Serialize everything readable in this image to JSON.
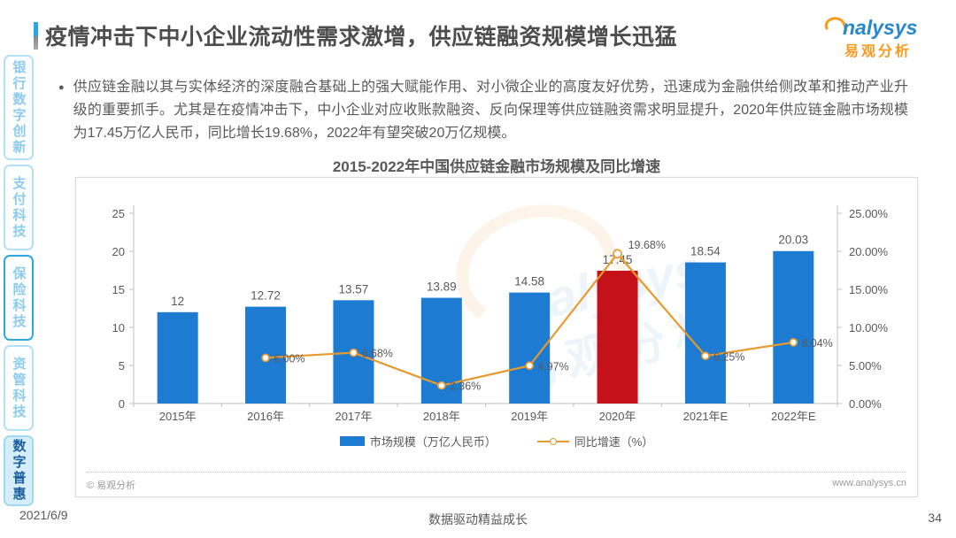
{
  "page": {
    "title": "疫情冲击下中小企业流动性需求激增，供应链融资规模增长迅猛",
    "date": "2021/6/9",
    "slogan": "数据驱动精益成长",
    "page_number": "34"
  },
  "logo": {
    "icon": "swirl-logo-icon",
    "brand": "nalysys",
    "brand_cn": "易观分析"
  },
  "sidebar": {
    "tabs": [
      {
        "label": "银行数字创新",
        "state": "normal"
      },
      {
        "label": "支付科技",
        "state": "normal"
      },
      {
        "label": "保险科技",
        "state": "outlined"
      },
      {
        "label": "资管科技",
        "state": "normal"
      },
      {
        "label": "数字普惠",
        "state": "active"
      }
    ]
  },
  "content": {
    "bullet_text": "供应链金融以其与实体经济的深度融合基础上的强大赋能作用、对小微企业的高度友好优势，迅速成为金融供给侧改革和推动产业升级的重要抓手。尤其是在疫情冲击下，中小企业对应收账款融资、反向保理等供应链融资需求明显提升，2020年供应链金融市场规模为17.45万亿人民币，同比增长19.68%，2022年有望突破20万亿规模。"
  },
  "chart_footer": {
    "copyright": "© 易观分析",
    "website": "www.analysys.cn"
  },
  "chart_data": {
    "type": "bar",
    "subtype": "bar+line combo, dual axis",
    "title": "2015-2022年中国供应链金融市场规模及同比增速",
    "categories": [
      "2015年",
      "2016年",
      "2017年",
      "2018年",
      "2019年",
      "2020年",
      "2021年E",
      "2022年E"
    ],
    "series": [
      {
        "name": "市场规模（万亿人民币）",
        "type": "bar",
        "axis": "left",
        "values": [
          12,
          12.72,
          13.57,
          13.89,
          14.58,
          17.45,
          18.54,
          20.03
        ],
        "labels": [
          "12",
          "12.72",
          "13.57",
          "13.89",
          "14.58",
          "17.45",
          "18.54",
          "20.03"
        ]
      },
      {
        "name": "同比增速（%）",
        "type": "line",
        "axis": "right",
        "values": [
          null,
          6.0,
          6.68,
          2.36,
          4.97,
          19.68,
          6.25,
          8.04
        ],
        "labels": [
          null,
          "6.00%",
          "6.68%",
          "2.36%",
          "4.97%",
          "19.68%",
          "6.25%",
          "8.04%"
        ]
      }
    ],
    "left_axis": {
      "min": 0,
      "max": 25,
      "step": 5,
      "ticks": [
        "0",
        "5",
        "10",
        "15",
        "20",
        "25"
      ]
    },
    "right_axis": {
      "min": 0,
      "max": 25,
      "step": 5,
      "ticks": [
        "0.00%",
        "5.00%",
        "10.00%",
        "15.00%",
        "20.00%",
        "25.00%"
      ]
    },
    "highlight_index": 5,
    "colors": {
      "bar": "#1E7BD2",
      "bar_highlight": "#C5121A",
      "line": "#E79A2E",
      "axis": "#BFBFBF",
      "text": "#595959"
    },
    "legend": [
      "市场规模（万亿人民币）",
      "同比增速（%）"
    ],
    "legend_position": "bottom",
    "grid": false,
    "watermark": "analysys 易观分析"
  }
}
